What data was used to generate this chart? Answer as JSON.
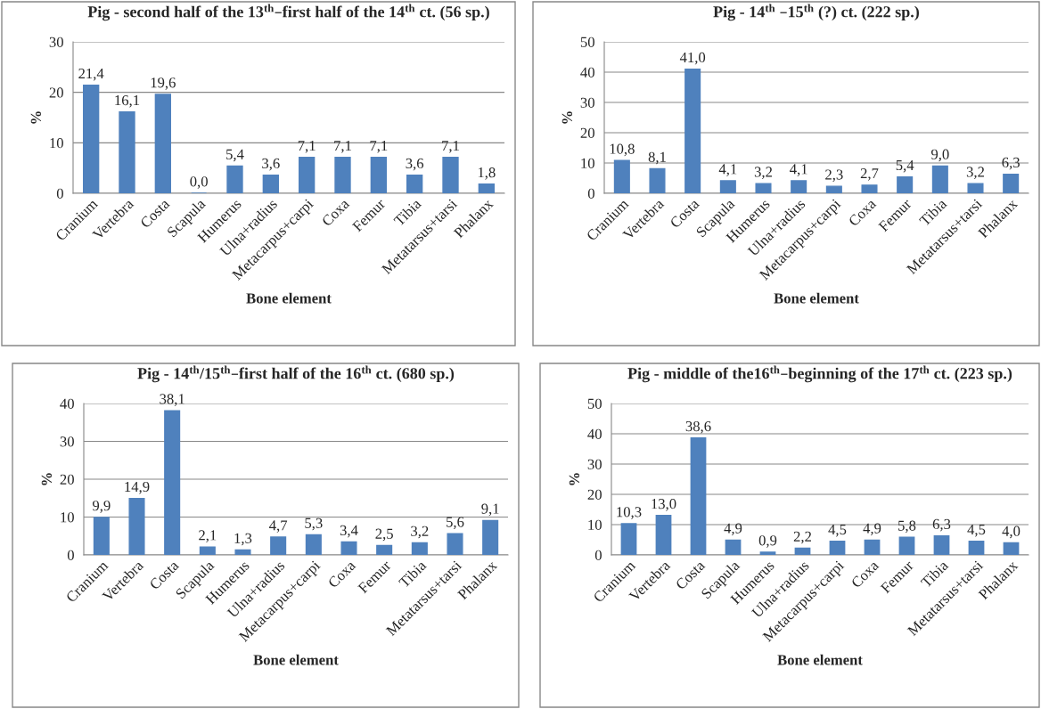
{
  "chart_data": [
    {
      "type": "bar",
      "title": "Pig - second half of the 13$^{th}$–first half of the 14$^{th}$ ct. (56 sp.)",
      "xlabel": "Bone element",
      "ylabel": "%",
      "categories": [
        "Cranium",
        "Vertebra",
        "Costa",
        "Scapula",
        "Humerus",
        "Ulna+radius",
        "Metacarpus+carpi",
        "Coxa",
        "Femur",
        "Tibia",
        "Metatarsus+tarsi",
        "Phalanx"
      ],
      "values": [
        21.4,
        16.1,
        19.6,
        0.0,
        5.4,
        3.6,
        7.1,
        7.1,
        7.1,
        3.6,
        7.1,
        1.8
      ],
      "value_labels": [
        "21,4",
        "16,1",
        "19,6",
        "0,0",
        "5,4",
        "3,6",
        "7,1",
        "7,1",
        "7,1",
        "3,6",
        "7,1",
        "1,8"
      ],
      "color": "#4f81bd",
      "ylim": [
        0,
        30
      ],
      "yticks": [
        0,
        10,
        20,
        30
      ],
      "grid": "y"
    },
    {
      "type": "bar",
      "title": "Pig - 14$^{th}$ –15$^{th}$ (?) ct. (222 sp.)",
      "xlabel": "Bone element",
      "ylabel": "%",
      "categories": [
        "Cranium",
        "Vertebra",
        "Costa",
        "Scapula",
        "Humerus",
        "Ulna+radius",
        "Metacarpus+carpi",
        "Coxa",
        "Femur",
        "Tibia",
        "Metatarsus+tarsi",
        "Phalanx"
      ],
      "values": [
        10.8,
        8.1,
        41.0,
        4.1,
        3.2,
        4.1,
        2.3,
        2.7,
        5.4,
        9.0,
        3.2,
        6.3
      ],
      "value_labels": [
        "10,8",
        "8,1",
        "41,0",
        "4,1",
        "3,2",
        "4,1",
        "2,3",
        "2,7",
        "5,4",
        "9,0",
        "3,2",
        "6,3"
      ],
      "color": "#4f81bd",
      "ylim": [
        0,
        50
      ],
      "yticks": [
        0,
        10,
        20,
        30,
        40,
        50
      ],
      "grid": "y"
    },
    {
      "type": "bar",
      "title": "Pig - 14$^{th}$/15$^{th}$–first half of the 16$^{th}$ ct. (680 sp.)",
      "xlabel": "Bone element",
      "ylabel": "%",
      "categories": [
        "Cranium",
        "Vertebra",
        "Costa",
        "Scapula",
        "Humerus",
        "Ulna+radius",
        "Metacarpus+carpi",
        "Coxa",
        "Femur",
        "Tibia",
        "Metatarsus+tarsi",
        "Phalanx"
      ],
      "values": [
        9.9,
        14.9,
        38.1,
        2.1,
        1.3,
        4.7,
        5.3,
        3.4,
        2.5,
        3.2,
        5.6,
        9.1
      ],
      "value_labels": [
        "9,9",
        "14,9",
        "38,1",
        "2,1",
        "1,3",
        "4,7",
        "5,3",
        "3,4",
        "2,5",
        "3,2",
        "5,6",
        "9,1"
      ],
      "color": "#4f81bd",
      "ylim": [
        0,
        40
      ],
      "yticks": [
        0,
        10,
        20,
        30,
        40
      ],
      "grid": "y"
    },
    {
      "type": "bar",
      "title": "Pig - middle of the16$^{th}$–beginning of the 17$^{th}$ ct. (223 sp.)",
      "xlabel": "Bone element",
      "ylabel": "%",
      "categories": [
        "Cranium",
        "Vertebra",
        "Costa",
        "Scapula",
        "Humerus",
        "Ulna+radius",
        "Metacarpus+carpi",
        "Coxa",
        "Femur",
        "Tibia",
        "Metatarsus+tarsi",
        "Phalanx"
      ],
      "values": [
        10.3,
        13.0,
        38.6,
        4.9,
        0.9,
        2.2,
        4.5,
        4.9,
        5.8,
        6.3,
        4.5,
        4.0
      ],
      "value_labels": [
        "10,3",
        "13,0",
        "38,6",
        "4,9",
        "0,9",
        "2,2",
        "4,5",
        "4,9",
        "5,8",
        "6,3",
        "4,5",
        "4,0"
      ],
      "color": "#4f81bd",
      "ylim": [
        0,
        50
      ],
      "yticks": [
        0,
        10,
        20,
        30,
        40,
        50
      ],
      "grid": "y"
    }
  ]
}
